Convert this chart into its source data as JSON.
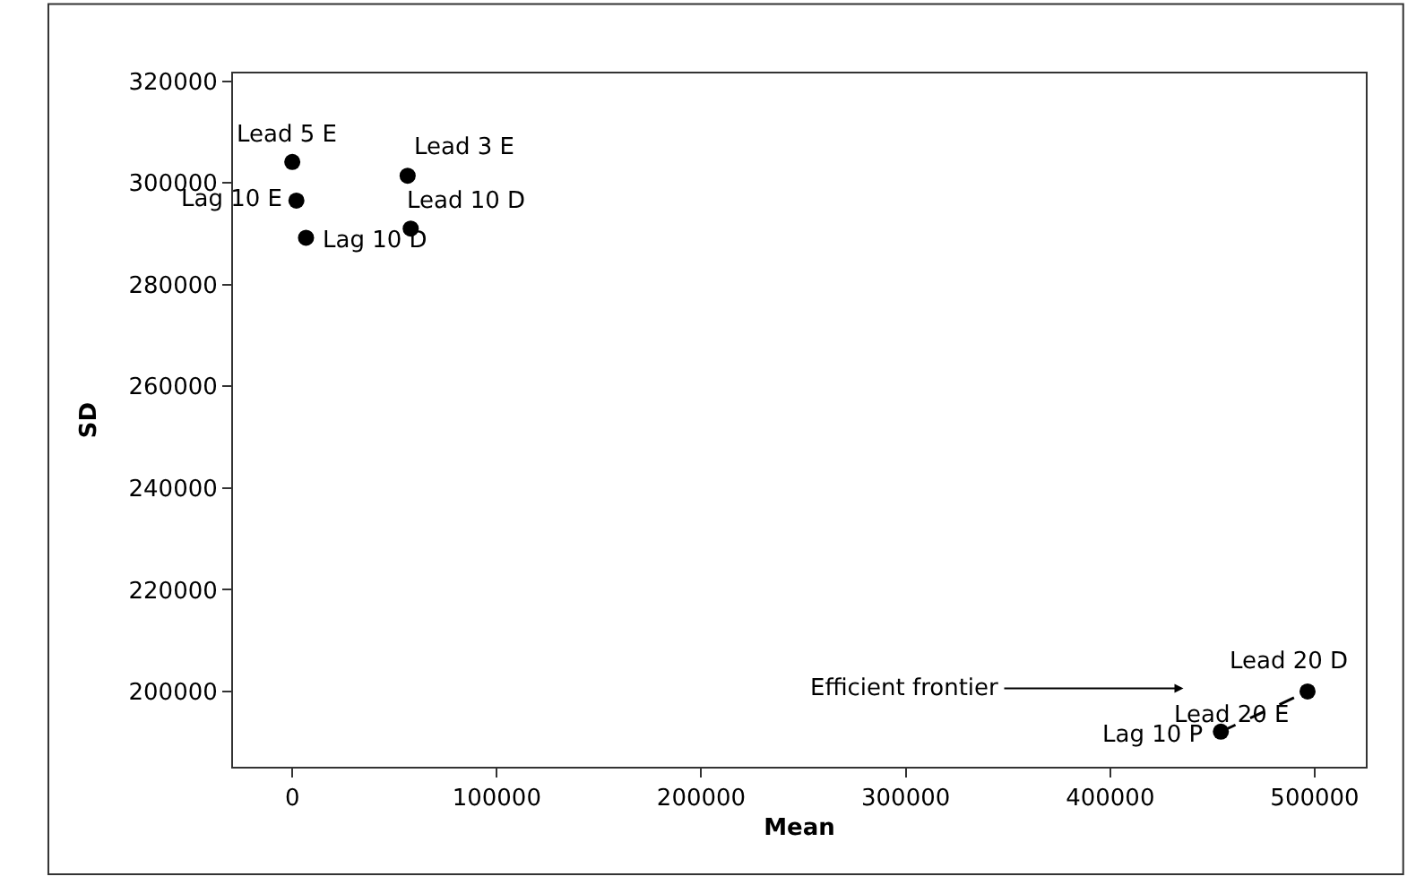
{
  "chart_data": {
    "type": "scatter",
    "xlabel": "Mean",
    "ylabel": "SD",
    "xlim": [
      -29000,
      525000
    ],
    "xticks": [
      0,
      100000,
      200000,
      300000,
      400000,
      500000
    ],
    "ylim": [
      185200,
      321500
    ],
    "yticks": [
      200000,
      220000,
      240000,
      260000,
      280000,
      300000,
      320000
    ],
    "series": [
      {
        "color": "#000000",
        "marker": "circle",
        "x": [
          0,
          2000,
          6700,
          56400,
          57900,
          454100,
          496500
        ],
        "values": [
          304100,
          296500,
          289200,
          301400,
          291000,
          192100,
          200000
        ]
      },
      {
        "type": "line",
        "color": "#000000",
        "line_style": "dashed",
        "marker": "none",
        "x": [
          454100,
          496500
        ],
        "values": [
          192100,
          200000
        ]
      }
    ],
    "annotations": [
      {
        "text": "Lead 5 E",
        "x": 0,
        "y": 304100
      },
      {
        "text": "Lag 10 E",
        "x": 2000,
        "y": 296500
      },
      {
        "text": "Lag 10 D",
        "x": 6700,
        "y": 289200
      },
      {
        "text": "Lead 3 E",
        "x": 56400,
        "y": 301400
      },
      {
        "text": "Lead 10 D",
        "x": 57900,
        "y": 291000
      },
      {
        "text": "Lag 10 P",
        "x": 454100,
        "y": 192100
      },
      {
        "text": "Lead 20 D",
        "x": 496500,
        "y": 200000
      },
      {
        "text": "Lead 20 E",
        "x": 496500,
        "y": 200000
      },
      "Efficient frontier"
    ]
  }
}
